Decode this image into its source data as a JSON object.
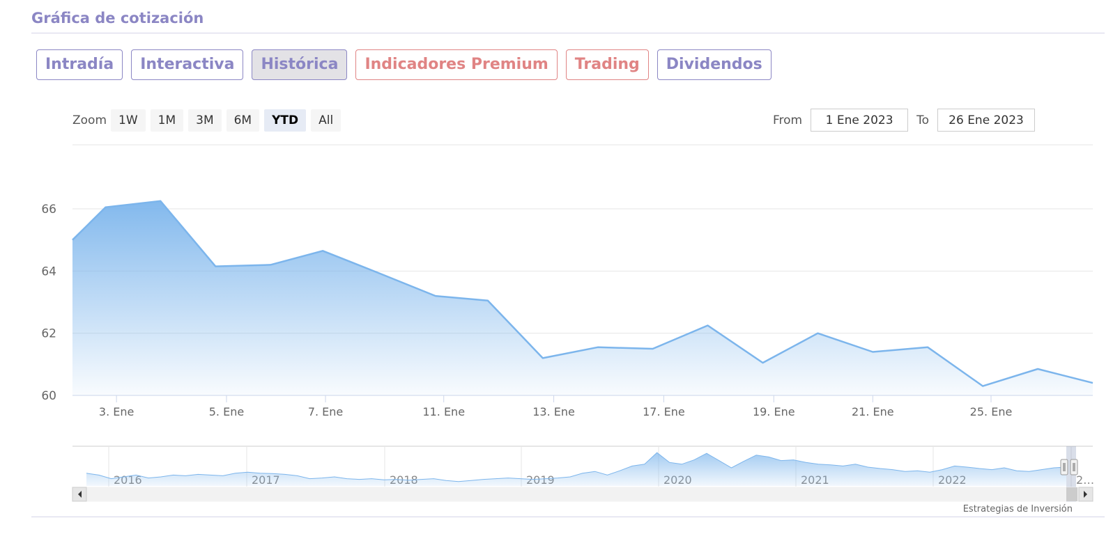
{
  "header": {
    "title": "Gráfica de cotización"
  },
  "tabs": [
    {
      "label": "Intradía",
      "style": "normal"
    },
    {
      "label": "Interactiva",
      "style": "normal"
    },
    {
      "label": "Histórica",
      "style": "active"
    },
    {
      "label": "Indicadores Premium",
      "style": "red"
    },
    {
      "label": "Trading",
      "style": "red"
    },
    {
      "label": "Dividendos",
      "style": "normal"
    }
  ],
  "zoom": {
    "label": "Zoom",
    "buttons": [
      "1W",
      "1M",
      "3M",
      "6M",
      "YTD",
      "All"
    ],
    "selected": "YTD"
  },
  "range": {
    "from_label": "From",
    "from_value": "1 Ene 2023",
    "to_label": "To",
    "to_value": "26 Ene 2023"
  },
  "credit": "Estrategias de Inversión",
  "colors": {
    "accent": "#8b86c4",
    "premium": "#e08484",
    "series_line": "#7cb5ec",
    "active_tab_bg": "#e3e2e6"
  },
  "icons": {
    "scroll_left": "left-arrow-icon",
    "scroll_right": "right-arrow-icon",
    "navigator_handle": "grip-icon"
  },
  "chart_data": {
    "type": "area",
    "ylim": [
      60,
      66
    ],
    "yticks": [
      60,
      62,
      64,
      66
    ],
    "xticks": [
      {
        "x": 1.5,
        "label": "3. Ene"
      },
      {
        "x": 5.5,
        "label": "5. Ene"
      },
      {
        "x": 9.1,
        "label": "7. Ene"
      },
      {
        "x": 13.4,
        "label": "11. Ene"
      },
      {
        "x": 17.4,
        "label": "13. Ene"
      },
      {
        "x": 21.4,
        "label": "17. Ene"
      },
      {
        "x": 25.4,
        "label": "19. Ene"
      },
      {
        "x": 29.0,
        "label": "21. Ene"
      },
      {
        "x": 33.3,
        "label": "25. Ene"
      }
    ],
    "xlim": [
      -0.1,
      37.0
    ],
    "series": [
      {
        "points": [
          [
            -0.1,
            65.0
          ],
          [
            1.1,
            66.05
          ],
          [
            3.1,
            66.25
          ],
          [
            5.1,
            64.15
          ],
          [
            7.1,
            64.2
          ],
          [
            9.0,
            64.65
          ],
          [
            11.0,
            63.95
          ],
          [
            13.1,
            63.2
          ],
          [
            15.0,
            63.05
          ],
          [
            17.0,
            61.2
          ],
          [
            19.0,
            61.55
          ],
          [
            21.0,
            61.5
          ],
          [
            23.0,
            62.25
          ],
          [
            25.0,
            61.05
          ],
          [
            27.0,
            62.0
          ],
          [
            29.0,
            61.4
          ],
          [
            31.0,
            61.55
          ],
          [
            33.0,
            60.3
          ],
          [
            35.0,
            60.85
          ],
          [
            37.0,
            60.4
          ]
        ]
      }
    ],
    "navigator": {
      "year_labels": [
        "2016",
        "2017",
        "2018",
        "2019",
        "2020",
        "2021",
        "2022",
        "2…"
      ],
      "values": [
        0.35,
        0.3,
        0.2,
        0.25,
        0.3,
        0.22,
        0.25,
        0.3,
        0.28,
        0.32,
        0.3,
        0.28,
        0.35,
        0.38,
        0.35,
        0.34,
        0.32,
        0.28,
        0.2,
        0.22,
        0.25,
        0.2,
        0.18,
        0.2,
        0.17,
        0.18,
        0.16,
        0.18,
        0.2,
        0.15,
        0.12,
        0.15,
        0.18,
        0.2,
        0.22,
        0.2,
        0.18,
        0.2,
        0.22,
        0.25,
        0.35,
        0.4,
        0.3,
        0.42,
        0.55,
        0.6,
        0.92,
        0.65,
        0.6,
        0.72,
        0.9,
        0.7,
        0.5,
        0.68,
        0.85,
        0.8,
        0.7,
        0.72,
        0.65,
        0.6,
        0.58,
        0.55,
        0.6,
        0.52,
        0.48,
        0.45,
        0.4,
        0.42,
        0.38,
        0.45,
        0.55,
        0.52,
        0.48,
        0.45,
        0.5,
        0.42,
        0.4,
        0.45,
        0.5,
        0.52
      ]
    }
  }
}
